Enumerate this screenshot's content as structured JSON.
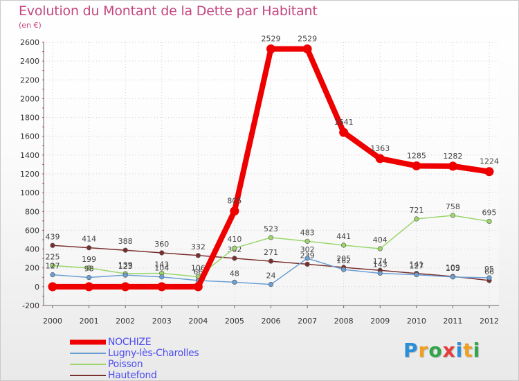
{
  "chart_data": {
    "type": "line",
    "title": "Evolution du Montant de la Dette par Habitant",
    "unit_label": "(en €)",
    "xlabel": "",
    "ylabel": "",
    "ylim": [
      -200,
      2600
    ],
    "y_ticks": [
      -200,
      0,
      200,
      400,
      600,
      800,
      1000,
      1200,
      1400,
      1600,
      1800,
      2000,
      2200,
      2400,
      2600
    ],
    "x": [
      "2000",
      "2001",
      "2002",
      "2003",
      "2004",
      "2005",
      "2006",
      "2007",
      "2008",
      "2009",
      "2010",
      "2011",
      "2012"
    ],
    "grid": true,
    "legend": "bottom-left",
    "series": [
      {
        "name": "Hautefond",
        "color": "#7a2f2f",
        "values": [
          439,
          414,
          388,
          360,
          332,
          302,
          271,
          239,
          205,
          174,
          141,
          109,
          66
        ],
        "labels": [
          "439",
          "414",
          "388",
          "360",
          "332",
          "302",
          "271",
          "239",
          "205",
          "174",
          "141",
          "109",
          "66"
        ]
      },
      {
        "name": "Poisson",
        "color": "#9ad66b",
        "values": [
          225,
          199,
          139,
          143,
          106,
          410,
          523,
          483,
          441,
          404,
          721,
          758,
          695
        ],
        "labels": [
          "225",
          "199",
          "139",
          "143",
          "106",
          "410",
          "523",
          "483",
          "441",
          "404",
          "721",
          "758",
          "695"
        ]
      },
      {
        "name": "Lugny-lès-Charolles",
        "color": "#6a9fd4",
        "values": [
          127,
          98,
          123,
          104,
          66,
          48,
          24,
          302,
          182,
          143,
          127,
          103,
          95
        ],
        "labels": [
          "127",
          "98",
          "123",
          "104",
          "66",
          "48",
          "24",
          "302",
          "182",
          "143",
          "127",
          "103",
          "95"
        ]
      },
      {
        "name": "NOCHIZE",
        "color": "#ee0000",
        "values": [
          0,
          0,
          0,
          0,
          0,
          805,
          2529,
          2529,
          1641,
          1363,
          1285,
          1282,
          1224
        ],
        "labels": [
          "",
          "",
          "",
          "",
          "",
          "805",
          "2529",
          "2529",
          "1641",
          "1363",
          "1285",
          "1282",
          "1224"
        ]
      }
    ]
  },
  "legend_items": [
    {
      "label": "NOCHIZE",
      "color": "#ee0000"
    },
    {
      "label": "Lugny-lès-Charolles",
      "color": "#6a9fd4"
    },
    {
      "label": "Poisson",
      "color": "#9ad66b"
    },
    {
      "label": "Hautefond",
      "color": "#7a2f2f"
    }
  ],
  "logo": {
    "letters": [
      "P",
      "r",
      "o",
      "x",
      "i",
      "t",
      "i"
    ],
    "colors": [
      "#2a8fd8",
      "#f0a020",
      "#30a64a",
      "#e63c3c",
      "#2a8fd8",
      "#f0a020",
      "#30a64a"
    ]
  }
}
